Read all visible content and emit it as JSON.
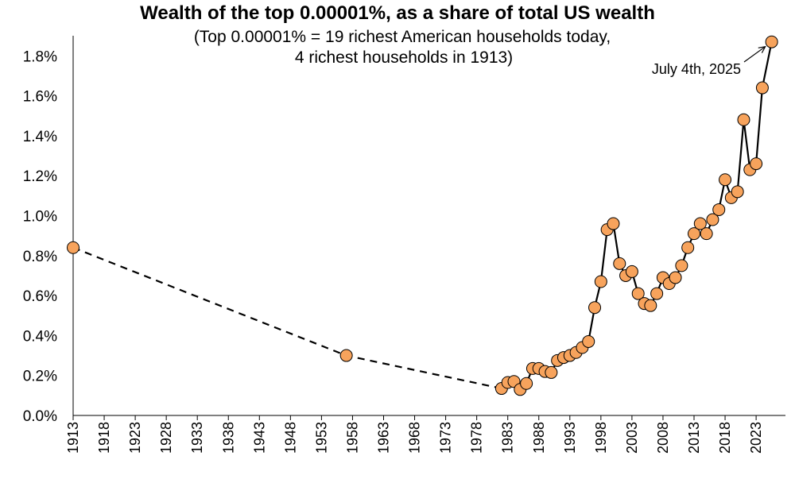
{
  "chart_data": {
    "type": "line",
    "title": "Wealth of the top 0.00001%, as a share of total US wealth",
    "subtitle_lines": [
      "(Top 0.00001% = 19 richest American households today,",
      "4 richest households in 1913)"
    ],
    "xlabel": "",
    "ylabel": "",
    "xlim": [
      1913,
      2025.5
    ],
    "ylim": [
      0,
      1.9
    ],
    "x_tick_labels": [
      "1913",
      "1918",
      "1923",
      "1928",
      "1933",
      "1938",
      "1943",
      "1948",
      "1953",
      "1958",
      "1963",
      "1968",
      "1973",
      "1978",
      "1983",
      "1988",
      "1993",
      "1998",
      "2003",
      "2008",
      "2013",
      "2018",
      "2023"
    ],
    "y_tick_labels": [
      "0.0%",
      "0.2%",
      "0.4%",
      "0.6%",
      "0.8%",
      "1.0%",
      "1.2%",
      "1.4%",
      "1.6%",
      "1.8%"
    ],
    "y_ticks": [
      0,
      0.2,
      0.4,
      0.6,
      0.8,
      1.0,
      1.2,
      1.4,
      1.6,
      1.8
    ],
    "grid": false,
    "marker_color": "#f7a35c",
    "line_color": "#000000",
    "series": [
      {
        "style": "dashed",
        "points": [
          [
            1913,
            0.84
          ],
          [
            1957,
            0.3
          ],
          [
            1982,
            0.135
          ]
        ]
      },
      {
        "style": "solid",
        "points": [
          [
            1982,
            0.135
          ],
          [
            1983,
            0.165
          ],
          [
            1984,
            0.17
          ],
          [
            1985,
            0.13
          ],
          [
            1986,
            0.16
          ],
          [
            1987,
            0.235
          ],
          [
            1988,
            0.235
          ],
          [
            1989,
            0.22
          ],
          [
            1990,
            0.215
          ],
          [
            1991,
            0.275
          ],
          [
            1992,
            0.29
          ],
          [
            1993,
            0.3
          ],
          [
            1994,
            0.315
          ],
          [
            1995,
            0.34
          ],
          [
            1996,
            0.37
          ],
          [
            1997,
            0.54
          ],
          [
            1998,
            0.67
          ],
          [
            1999,
            0.93
          ],
          [
            2000,
            0.96
          ],
          [
            2001,
            0.76
          ],
          [
            2002,
            0.7
          ],
          [
            2003,
            0.72
          ],
          [
            2004,
            0.61
          ],
          [
            2005,
            0.56
          ],
          [
            2006,
            0.55
          ],
          [
            2007,
            0.61
          ],
          [
            2008,
            0.69
          ],
          [
            2009,
            0.66
          ],
          [
            2010,
            0.69
          ],
          [
            2011,
            0.75
          ],
          [
            2012,
            0.84
          ],
          [
            2013,
            0.91
          ],
          [
            2014,
            0.96
          ],
          [
            2015,
            0.91
          ],
          [
            2016,
            0.98
          ],
          [
            2017,
            1.03
          ],
          [
            2018,
            1.18
          ],
          [
            2019,
            1.09
          ],
          [
            2020,
            1.12
          ],
          [
            2021,
            1.48
          ],
          [
            2022,
            1.23
          ],
          [
            2023,
            1.26
          ],
          [
            2024,
            1.64
          ],
          [
            2025.5,
            1.87
          ]
        ]
      }
    ],
    "annotation": {
      "text": "July 4th, 2025",
      "x": 2025.5,
      "y": 1.87
    }
  }
}
